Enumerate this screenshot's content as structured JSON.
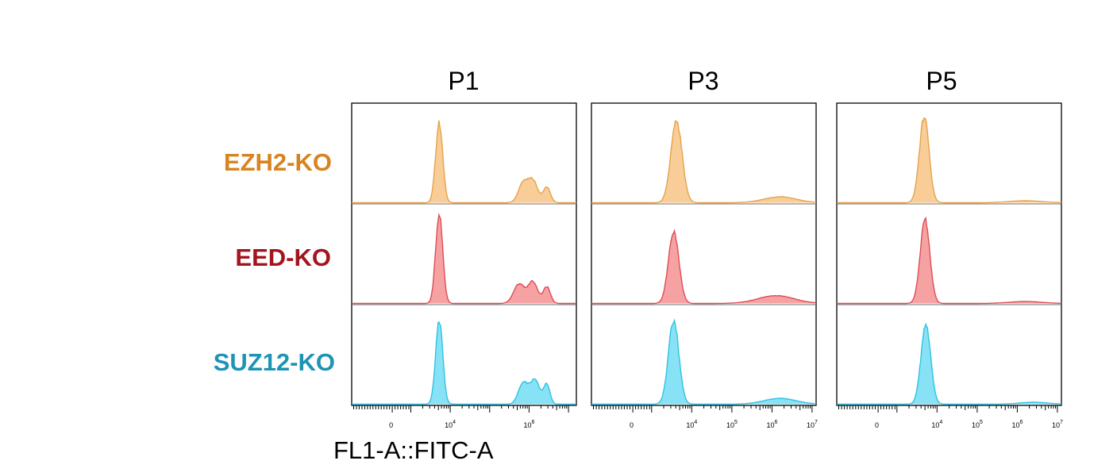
{
  "chart_data": {
    "type": "area",
    "title": "",
    "xlabel": "FL1-A::FITC-A",
    "x_scale": "logicle",
    "columns": [
      {
        "name": "P1",
        "tick_labels": [
          "0",
          "10^4",
          "10^6"
        ]
      },
      {
        "name": "P3",
        "tick_labels": [
          "0",
          "10^4",
          "10^5",
          "10^6",
          "10^7"
        ]
      },
      {
        "name": "P5",
        "tick_labels": [
          "0",
          "10^4",
          "10^5",
          "10^6",
          "10^7"
        ]
      }
    ],
    "rows": [
      {
        "name": "EZH2-KO",
        "label_color": "#d8841f",
        "fill_color": "#f9cd98",
        "line_color": "#e6a24a"
      },
      {
        "name": "EED-KO",
        "label_color": "#a3151c",
        "fill_color": "#f6a2a3",
        "line_color": "#dd4d55"
      },
      {
        "name": "SUZ12-KO",
        "label_color": "#1e94b4",
        "fill_color": "#88e2f6",
        "line_color": "#2ec3e2"
      }
    ],
    "histograms": [
      {
        "row": "EZH2-KO",
        "column": "P1",
        "peaks": [
          {
            "x": 3.72,
            "sigma": 0.09,
            "height": 0.82
          },
          {
            "x": 5.85,
            "sigma": 0.12,
            "height": 0.2
          },
          {
            "x": 6.1,
            "sigma": 0.12,
            "height": 0.22
          },
          {
            "x": 6.45,
            "sigma": 0.09,
            "height": 0.16
          }
        ]
      },
      {
        "row": "EZH2-KO",
        "column": "P3",
        "peaks": [
          {
            "x": 3.62,
            "sigma": 0.14,
            "height": 0.84
          },
          {
            "x": 6.2,
            "sigma": 0.4,
            "height": 0.06
          }
        ]
      },
      {
        "row": "EZH2-KO",
        "column": "P5",
        "peaks": [
          {
            "x": 3.68,
            "sigma": 0.12,
            "height": 0.88
          },
          {
            "x": 6.2,
            "sigma": 0.4,
            "height": 0.02
          }
        ]
      },
      {
        "row": "EED-KO",
        "column": "P1",
        "peaks": [
          {
            "x": 3.72,
            "sigma": 0.09,
            "height": 0.92
          },
          {
            "x": 5.75,
            "sigma": 0.14,
            "height": 0.2
          },
          {
            "x": 6.1,
            "sigma": 0.12,
            "height": 0.22
          },
          {
            "x": 6.45,
            "sigma": 0.09,
            "height": 0.17
          }
        ]
      },
      {
        "row": "EED-KO",
        "column": "P3",
        "peaks": [
          {
            "x": 3.55,
            "sigma": 0.13,
            "height": 0.74
          },
          {
            "x": 6.1,
            "sigma": 0.45,
            "height": 0.08
          }
        ]
      },
      {
        "row": "EED-KO",
        "column": "P5",
        "peaks": [
          {
            "x": 3.7,
            "sigma": 0.12,
            "height": 0.86
          },
          {
            "x": 6.2,
            "sigma": 0.4,
            "height": 0.02
          }
        ]
      },
      {
        "row": "SUZ12-KO",
        "column": "P1",
        "peaks": [
          {
            "x": 3.72,
            "sigma": 0.09,
            "height": 0.86
          },
          {
            "x": 5.85,
            "sigma": 0.12,
            "height": 0.22
          },
          {
            "x": 6.15,
            "sigma": 0.12,
            "height": 0.25
          },
          {
            "x": 6.45,
            "sigma": 0.08,
            "height": 0.2
          }
        ]
      },
      {
        "row": "SUZ12-KO",
        "column": "P3",
        "peaks": [
          {
            "x": 3.55,
            "sigma": 0.13,
            "height": 0.86
          },
          {
            "x": 6.2,
            "sigma": 0.4,
            "height": 0.06
          }
        ]
      },
      {
        "row": "SUZ12-KO",
        "column": "P5",
        "peaks": [
          {
            "x": 3.72,
            "sigma": 0.12,
            "height": 0.82
          },
          {
            "x": 6.4,
            "sigma": 0.35,
            "height": 0.02
          }
        ]
      }
    ]
  }
}
